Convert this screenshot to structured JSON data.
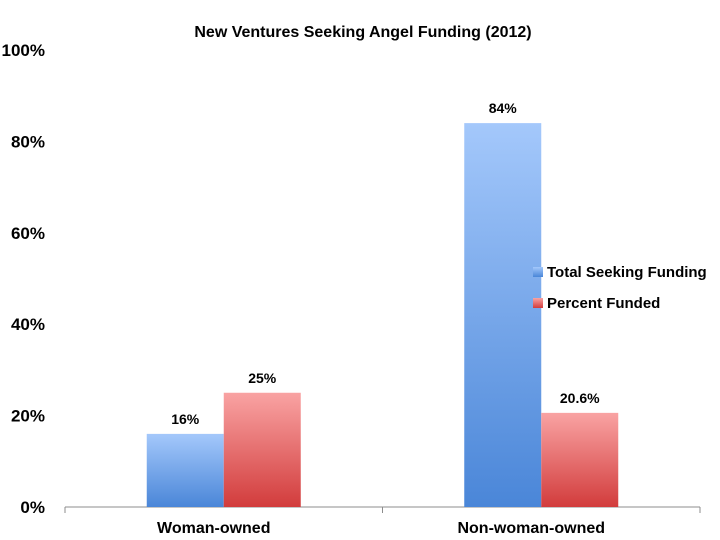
{
  "chart_data": {
    "type": "bar",
    "title": "New Ventures Seeking Angel Funding (2012)",
    "categories": [
      "Woman-owned",
      "Non-woman-owned"
    ],
    "series": [
      {
        "name": "Total Seeking Funding",
        "values": [
          16,
          84
        ],
        "labels": [
          "16%",
          "84%"
        ],
        "color_top": "#a4c8fb",
        "color_bottom": "#4a86d8"
      },
      {
        "name": "Percent Funded",
        "values": [
          25,
          20.6
        ],
        "labels": [
          "25%",
          "20.6%"
        ],
        "color_top": "#f9a3a3",
        "color_bottom": "#d23c3c"
      }
    ],
    "yticks": [
      0,
      20,
      40,
      60,
      80,
      100
    ],
    "ytick_labels": [
      "0%",
      "20%",
      "40%",
      "60%",
      "80%",
      "100%"
    ],
    "ylim": [
      0,
      100
    ],
    "xlabel": "",
    "ylabel": "",
    "grid": false,
    "legend_position": "right"
  }
}
